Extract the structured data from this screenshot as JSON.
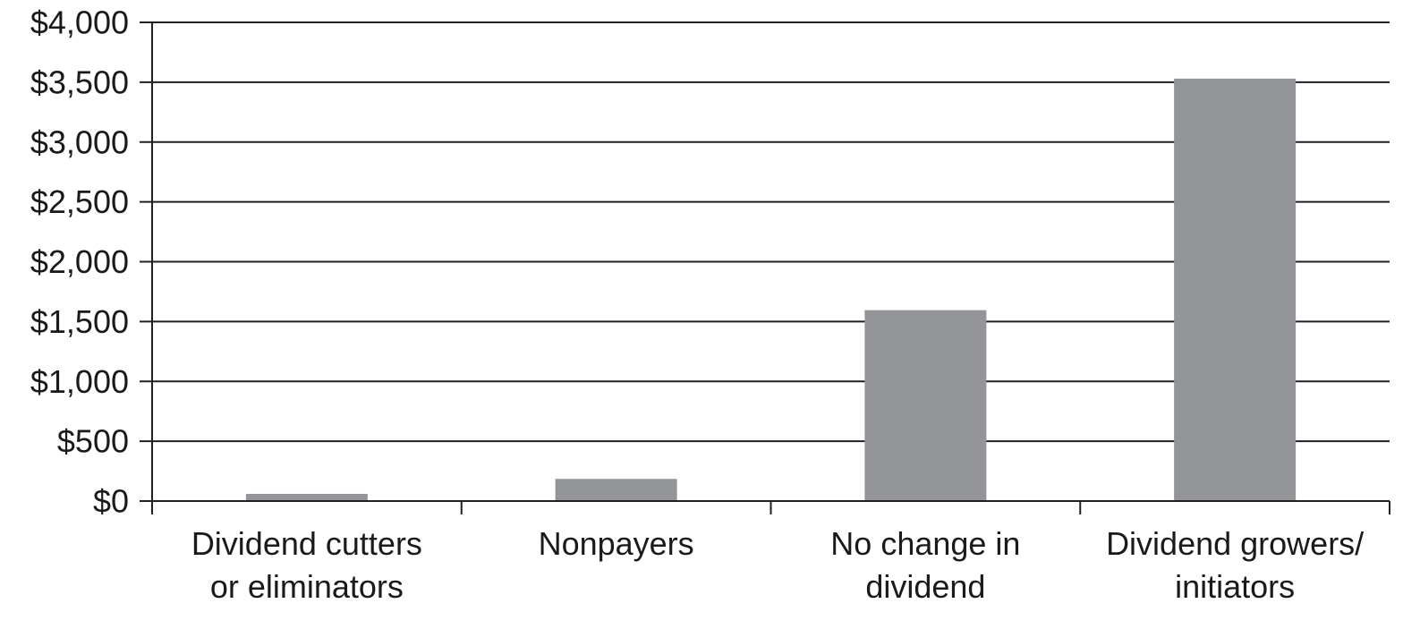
{
  "chart_data": {
    "type": "bar",
    "title": "",
    "xlabel": "",
    "ylabel": "",
    "categories": [
      [
        "Dividend cutters",
        "or eliminators"
      ],
      [
        "Nonpayers"
      ],
      [
        "No change in",
        "dividend"
      ],
      [
        "Dividend growers/",
        "initiators"
      ]
    ],
    "values": [
      60,
      185,
      1595,
      3530
    ],
    "ylim": [
      0,
      4000
    ],
    "ytick_values": [
      0,
      500,
      1000,
      1500,
      2000,
      2500,
      3000,
      3500,
      4000
    ],
    "ytick_labels": [
      "$0",
      "$500",
      "$1,000",
      "$1,500",
      "$2,000",
      "$2,500",
      "$3,000",
      "$3,500",
      "$4,000"
    ],
    "grid": true,
    "legend": "none",
    "colors": {
      "bar": "#939598",
      "grid": "#231f20",
      "axis": "#231f20",
      "text": "#1a1a1a"
    }
  }
}
